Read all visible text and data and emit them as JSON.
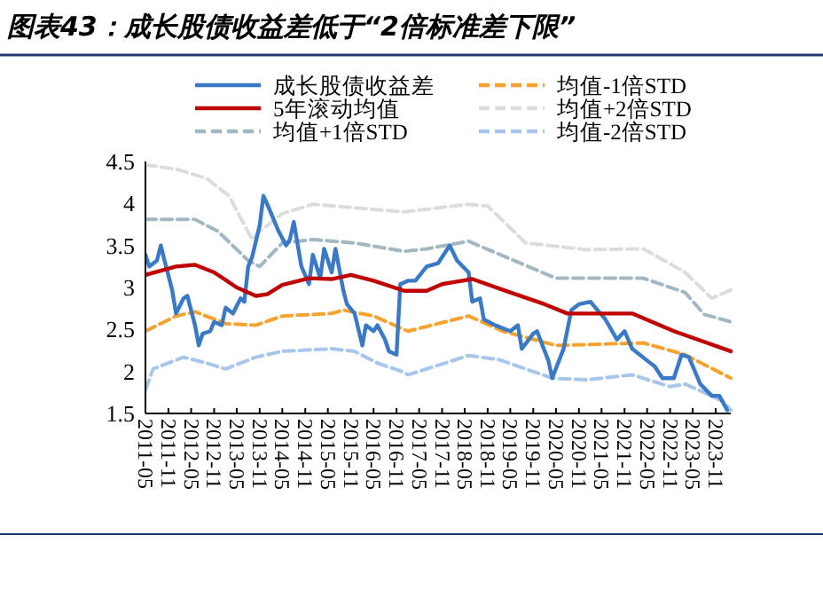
{
  "chart_data": {
    "type": "line",
    "title": "图表43：成长股债收益差低于“2倍标准差下限”",
    "xlim": [
      "2011-05",
      "2024-03"
    ],
    "xticks": [
      "2011-05",
      "2011-11",
      "2012-05",
      "2012-11",
      "2013-05",
      "2013-11",
      "2014-05",
      "2014-11",
      "2015-05",
      "2015-11",
      "2016-05",
      "2016-11",
      "2017-05",
      "2017-11",
      "2018-05",
      "2018-11",
      "2019-05",
      "2019-11",
      "2020-05",
      "2020-11",
      "2021-05",
      "2021-11",
      "2022-05",
      "2022-11",
      "2023-05",
      "2023-11"
    ],
    "ylim": [
      1.5,
      4.5
    ],
    "yticks": [
      1.5,
      2,
      2.5,
      3,
      3.5,
      4,
      4.5
    ],
    "grid": false,
    "legend": "top",
    "marker": "none",
    "series": [
      {
        "name": "成长股债收益差",
        "color": "#3a78c8",
        "line_style": "solid",
        "x": [
          "2011-05",
          "2011-06",
          "2011-08",
          "2011-09",
          "2011-10",
          "2011-12",
          "2012-01",
          "2012-03",
          "2012-04",
          "2012-06",
          "2012-07",
          "2012-08",
          "2012-10",
          "2012-11",
          "2013-01",
          "2013-02",
          "2013-04",
          "2013-06",
          "2013-07",
          "2013-08",
          "2013-09",
          "2013-11",
          "2013-12",
          "2014-01",
          "2014-02",
          "2014-04",
          "2014-06",
          "2014-07",
          "2014-08",
          "2014-10",
          "2014-12",
          "2015-01",
          "2015-03",
          "2015-04",
          "2015-06",
          "2015-07",
          "2015-09",
          "2015-10",
          "2015-12",
          "2016-02",
          "2016-03",
          "2016-05",
          "2016-06",
          "2016-08",
          "2016-09",
          "2016-11",
          "2016-12",
          "2017-02",
          "2017-04",
          "2017-07",
          "2017-10",
          "2018-01",
          "2018-03",
          "2018-06",
          "2018-07",
          "2018-09",
          "2018-10",
          "2019-01",
          "2019-05",
          "2019-07",
          "2019-08",
          "2019-11",
          "2019-12",
          "2020-03",
          "2020-04",
          "2020-07",
          "2020-09",
          "2020-11",
          "2021-02",
          "2021-06",
          "2021-09",
          "2021-11",
          "2022-01",
          "2022-05",
          "2022-07",
          "2022-09",
          "2022-12",
          "2023-02",
          "2023-04",
          "2023-07",
          "2023-10",
          "2023-12",
          "2024-02"
        ],
        "values": [
          3.39,
          3.25,
          3.32,
          3.5,
          3.32,
          2.97,
          2.69,
          2.87,
          2.9,
          2.55,
          2.31,
          2.45,
          2.48,
          2.59,
          2.55,
          2.76,
          2.69,
          2.87,
          2.83,
          3.25,
          3.36,
          3.74,
          4.09,
          3.99,
          3.88,
          3.67,
          3.5,
          3.57,
          3.78,
          3.25,
          3.04,
          3.39,
          3.11,
          3.46,
          3.18,
          3.46,
          2.97,
          2.8,
          2.69,
          2.31,
          2.55,
          2.48,
          2.55,
          2.38,
          2.24,
          2.2,
          3.04,
          3.08,
          3.08,
          3.25,
          3.29,
          3.5,
          3.32,
          3.18,
          2.83,
          2.87,
          2.62,
          2.55,
          2.48,
          2.55,
          2.27,
          2.45,
          2.48,
          2.13,
          1.92,
          2.27,
          2.73,
          2.8,
          2.83,
          2.62,
          2.38,
          2.48,
          2.27,
          2.13,
          2.06,
          1.92,
          1.92,
          2.2,
          2.17,
          1.85,
          1.71,
          1.71,
          1.54
        ]
      },
      {
        "name": "5年滚动均值",
        "color": "#c00000",
        "line_style": "solid",
        "x": [
          "2011-05",
          "2012-01",
          "2012-06",
          "2012-11",
          "2013-05",
          "2013-10",
          "2014-01",
          "2014-05",
          "2014-12",
          "2015-06",
          "2015-11",
          "2016-05",
          "2017-01",
          "2017-07",
          "2017-11",
          "2018-07",
          "2019-05",
          "2020-02",
          "2020-08",
          "2022-01",
          "2022-12",
          "2024-03"
        ],
        "values": [
          3.15,
          3.25,
          3.27,
          3.18,
          3.0,
          2.9,
          2.92,
          3.03,
          3.11,
          3.1,
          3.15,
          3.08,
          2.96,
          2.96,
          3.04,
          3.1,
          2.94,
          2.8,
          2.69,
          2.69,
          2.48,
          2.24
        ]
      },
      {
        "name": "均值+1倍STD",
        "color": "#a3b7c2",
        "line_style": "dashed",
        "x": [
          "2011-05",
          "2012-06",
          "2012-12",
          "2013-08",
          "2013-11",
          "2014-05",
          "2015-01",
          "2015-12",
          "2017-01",
          "2017-07",
          "2018-06",
          "2019-06",
          "2020-05",
          "2022-04",
          "2023-03",
          "2023-08",
          "2024-03"
        ],
        "values": [
          3.81,
          3.81,
          3.67,
          3.32,
          3.25,
          3.53,
          3.57,
          3.53,
          3.43,
          3.46,
          3.55,
          3.32,
          3.11,
          3.11,
          2.94,
          2.68,
          2.59
        ]
      },
      {
        "name": "均值-1倍STD",
        "color": "#f5a32e",
        "line_style": "dashed",
        "x": [
          "2011-05",
          "2012-01",
          "2012-06",
          "2013-02",
          "2013-10",
          "2014-05",
          "2015-06",
          "2015-09",
          "2016-05",
          "2017-02",
          "2018-06",
          "2019-03",
          "2020-05",
          "2022-04",
          "2023-03",
          "2024-03"
        ],
        "values": [
          2.48,
          2.66,
          2.71,
          2.57,
          2.55,
          2.66,
          2.69,
          2.73,
          2.66,
          2.48,
          2.66,
          2.48,
          2.31,
          2.34,
          2.2,
          1.92
        ]
      },
      {
        "name": "均值+2倍STD",
        "color": "#dcdcdc",
        "line_style": "dashed",
        "x": [
          "2011-05",
          "2012-01",
          "2012-09",
          "2013-03",
          "2013-09",
          "2013-11",
          "2014-05",
          "2015-01",
          "2015-12",
          "2017-01",
          "2018-06",
          "2018-11",
          "2019-09",
          "2021-01",
          "2022-04",
          "2023-03",
          "2023-10",
          "2024-03"
        ],
        "values": [
          4.46,
          4.41,
          4.3,
          4.09,
          3.57,
          3.67,
          3.88,
          3.99,
          3.95,
          3.9,
          3.99,
          3.97,
          3.53,
          3.45,
          3.46,
          3.18,
          2.87,
          2.97
        ]
      },
      {
        "name": "均值-2倍STD",
        "color": "#a8c5ec",
        "line_style": "dashed",
        "x": [
          "2011-05",
          "2011-07",
          "2012-03",
          "2012-09",
          "2013-02",
          "2013-10",
          "2014-05",
          "2015-06",
          "2015-12",
          "2016-06",
          "2017-01",
          "2017-02",
          "2018-06",
          "2019-02",
          "2020-04",
          "2021-01",
          "2022-01",
          "2022-11",
          "2023-03",
          "2023-08",
          "2024-01",
          "2024-03"
        ],
        "values": [
          1.78,
          2.03,
          2.17,
          2.1,
          2.03,
          2.17,
          2.24,
          2.27,
          2.24,
          2.1,
          1.99,
          1.96,
          2.19,
          2.14,
          1.92,
          1.9,
          1.96,
          1.82,
          1.85,
          1.75,
          1.64,
          1.54
        ]
      }
    ]
  }
}
